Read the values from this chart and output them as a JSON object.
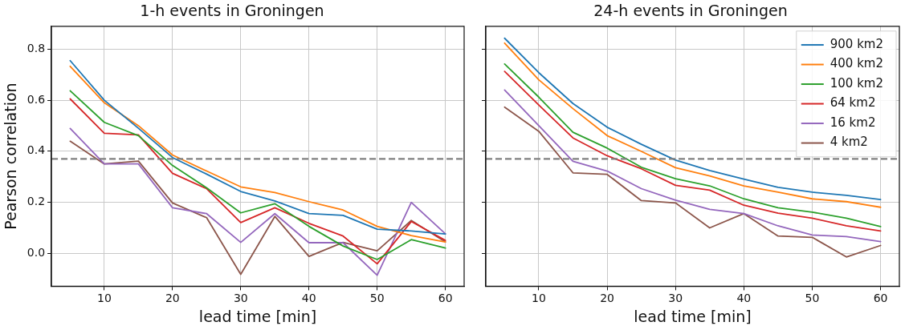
{
  "chart_data": [
    {
      "type": "line",
      "title": "1-h events in Groningen",
      "xlabel": "lead time [min]",
      "ylabel": "Pearson correlation",
      "x": [
        5,
        10,
        15,
        20,
        25,
        30,
        35,
        40,
        45,
        50,
        55,
        60
      ],
      "xlim": [
        2.25,
        62.75
      ],
      "xticks": [
        10,
        20,
        30,
        40,
        50,
        60
      ],
      "ylim": [
        -0.13,
        0.89
      ],
      "yticks": [
        {
          "value": 0,
          "label": "0.0"
        },
        {
          "value": 0.2,
          "label": "0.2"
        },
        {
          "value": 0.4,
          "label": "0.4"
        },
        {
          "value": 0.6,
          "label": "0.6"
        },
        {
          "value": 0.8,
          "label": "0.8"
        }
      ],
      "grid": true,
      "marker": "none",
      "line_style": "solid",
      "ref_lines": [
        {
          "axis": "y",
          "value": 0.37,
          "label": null,
          "color": "#808080",
          "line_style": "dashed"
        }
      ],
      "series": [
        {
          "color": "#1f77b4",
          "values": [
            0.755,
            0.6,
            0.49,
            0.375,
            0.31,
            0.242,
            0.205,
            0.155,
            0.148,
            0.094,
            0.087,
            0.075
          ]
        },
        {
          "color": "#ff7f0e",
          "values": [
            0.733,
            0.59,
            0.5,
            0.385,
            0.322,
            0.26,
            0.238,
            0.202,
            0.169,
            0.105,
            0.069,
            0.044
          ]
        },
        {
          "color": "#2ca02c",
          "values": [
            0.637,
            0.513,
            0.461,
            0.344,
            0.256,
            0.158,
            0.194,
            0.105,
            0.028,
            -0.025,
            0.053,
            0.02
          ]
        },
        {
          "color": "#d62728",
          "values": [
            0.605,
            0.47,
            0.464,
            0.313,
            0.253,
            0.12,
            0.178,
            0.117,
            0.067,
            -0.042,
            0.124,
            0.05
          ]
        },
        {
          "color": "#9467bd",
          "values": [
            0.489,
            0.35,
            0.35,
            0.178,
            0.155,
            0.042,
            0.155,
            0.041,
            0.041,
            -0.087,
            0.199,
            0.076
          ]
        },
        {
          "color": "#8c564b",
          "values": [
            0.439,
            0.35,
            0.361,
            0.197,
            0.139,
            -0.083,
            0.144,
            -0.013,
            0.042,
            0.009,
            0.128,
            0.044
          ]
        }
      ]
    },
    {
      "type": "line",
      "title": "24-h events in Groningen",
      "xlabel": "lead time [min]",
      "x": [
        5,
        10,
        15,
        20,
        25,
        30,
        35,
        40,
        45,
        50,
        55,
        60
      ],
      "xlim": [
        2.25,
        62.75
      ],
      "xticks": [
        10,
        20,
        30,
        40,
        50,
        60
      ],
      "ylim": [
        -0.13,
        0.89
      ],
      "yticks": [
        {
          "value": 0,
          "label": null
        },
        {
          "value": 0.2,
          "label": null
        },
        {
          "value": 0.4,
          "label": null
        },
        {
          "value": 0.6,
          "label": null
        },
        {
          "value": 0.8,
          "label": null
        }
      ],
      "tick_labels": "x",
      "grid": true,
      "legend": "top right",
      "marker": "none",
      "line_style": "solid",
      "ref_lines": [
        {
          "axis": "y",
          "value": 0.37,
          "label": null,
          "color": "#808080",
          "line_style": "dashed"
        }
      ],
      "series": [
        {
          "name": "900 km2",
          "color": "#1f77b4",
          "values": [
            0.843,
            0.708,
            0.587,
            0.494,
            0.427,
            0.365,
            0.324,
            0.29,
            0.258,
            0.239,
            0.227,
            0.21
          ]
        },
        {
          "name": "400 km2",
          "color": "#ff7f0e",
          "values": [
            0.824,
            0.68,
            0.567,
            0.461,
            0.399,
            0.335,
            0.303,
            0.264,
            0.239,
            0.213,
            0.202,
            0.18
          ]
        },
        {
          "name": "100 km2",
          "color": "#2ca02c",
          "values": [
            0.742,
            0.612,
            0.474,
            0.412,
            0.337,
            0.292,
            0.264,
            0.213,
            0.178,
            0.161,
            0.137,
            0.104
          ]
        },
        {
          "name": "64 km2",
          "color": "#d62728",
          "values": [
            0.713,
            0.581,
            0.452,
            0.382,
            0.331,
            0.266,
            0.247,
            0.188,
            0.157,
            0.137,
            0.107,
            0.087
          ]
        },
        {
          "name": "16 km2",
          "color": "#9467bd",
          "values": [
            0.64,
            0.5,
            0.36,
            0.322,
            0.253,
            0.208,
            0.172,
            0.155,
            0.107,
            0.071,
            0.065,
            0.045
          ]
        },
        {
          "name": "4 km2",
          "color": "#8c564b",
          "values": [
            0.573,
            0.478,
            0.315,
            0.309,
            0.206,
            0.197,
            0.099,
            0.155,
            0.067,
            0.062,
            -0.015,
            0.03
          ]
        }
      ]
    }
  ]
}
